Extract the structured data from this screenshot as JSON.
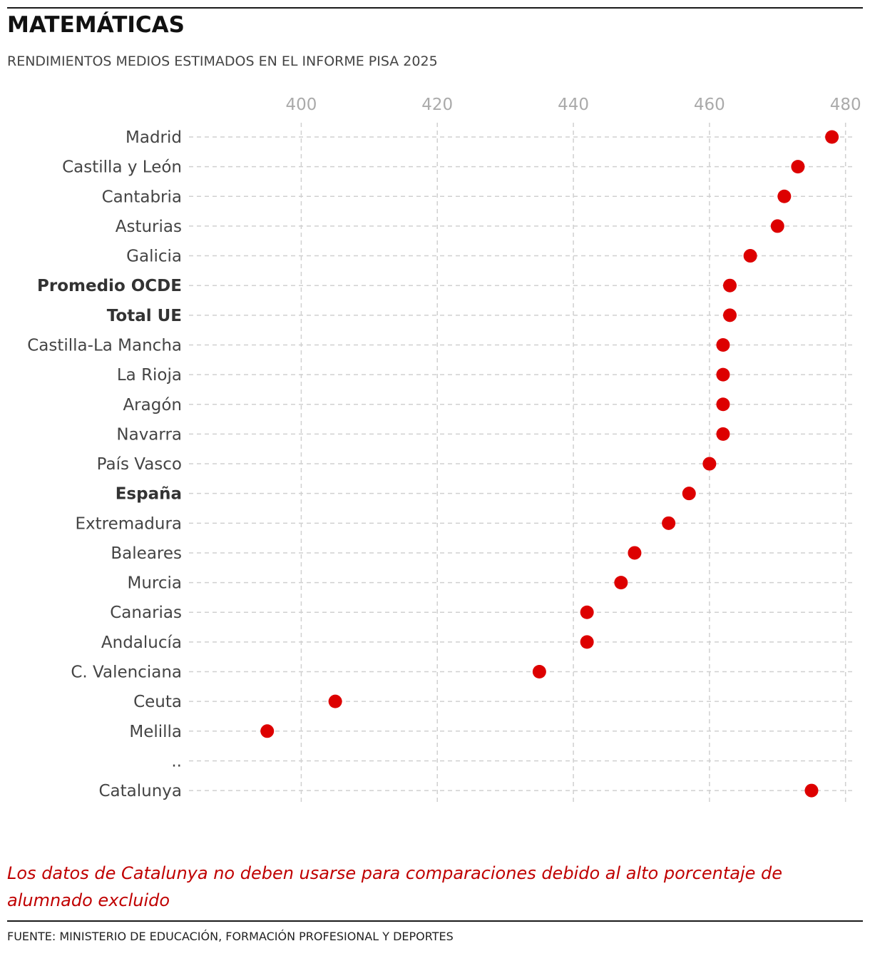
{
  "title": "MATEMÁTICAS",
  "subtitle": "RENDIMIENTOS MEDIOS ESTIMADOS EN EL INFORME PISA 2025",
  "note": "Los datos de Catalunya no deben usarse para comparaciones debido al alto porcentaje de alumnado excluido",
  "source": "FUENTE: MINISTERIO DE EDUCACIÓN, FORMACIÓN PROFESIONAL Y DEPORTES",
  "colors": {
    "dot": "#dd0000",
    "note": "#c00000",
    "grid": "#d0d0d0",
    "tick": "#aaaaaa"
  },
  "chart_data": {
    "type": "scatter",
    "xlim": [
      383.5,
      481.5
    ],
    "xticks": [
      400,
      420,
      440,
      460,
      480
    ],
    "grid": true,
    "rows": [
      {
        "label": "Madrid",
        "value": 478,
        "bold": false
      },
      {
        "label": "Castilla y León",
        "value": 473,
        "bold": false
      },
      {
        "label": "Cantabria",
        "value": 471,
        "bold": false
      },
      {
        "label": "Asturias",
        "value": 470,
        "bold": false
      },
      {
        "label": "Galicia",
        "value": 466,
        "bold": false
      },
      {
        "label": "Promedio OCDE",
        "value": 463,
        "bold": true
      },
      {
        "label": "Total UE",
        "value": 463,
        "bold": true
      },
      {
        "label": "Castilla-La Mancha",
        "value": 462,
        "bold": false
      },
      {
        "label": "La Rioja",
        "value": 462,
        "bold": false
      },
      {
        "label": "Aragón",
        "value": 462,
        "bold": false
      },
      {
        "label": "Navarra",
        "value": 462,
        "bold": false
      },
      {
        "label": "País Vasco",
        "value": 460,
        "bold": false
      },
      {
        "label": "España",
        "value": 457,
        "bold": true
      },
      {
        "label": "Extremadura",
        "value": 454,
        "bold": false
      },
      {
        "label": "Baleares",
        "value": 449,
        "bold": false
      },
      {
        "label": "Murcia",
        "value": 447,
        "bold": false
      },
      {
        "label": "Canarias",
        "value": 442,
        "bold": false
      },
      {
        "label": "Andalucía",
        "value": 442,
        "bold": false
      },
      {
        "label": "C. Valenciana",
        "value": 435,
        "bold": false
      },
      {
        "label": "Ceuta",
        "value": 405,
        "bold": false
      },
      {
        "label": "Melilla",
        "value": 395,
        "bold": false
      },
      {
        "label": "..",
        "value": null,
        "bold": false
      },
      {
        "label": "Catalunya",
        "value": 475,
        "bold": false
      }
    ]
  }
}
